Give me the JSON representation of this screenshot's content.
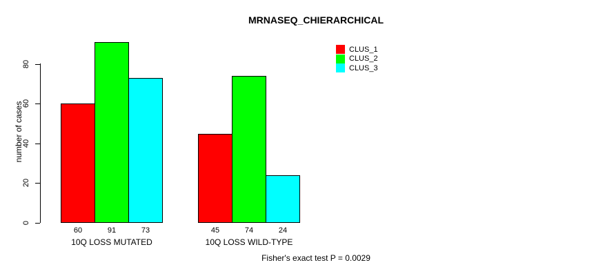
{
  "title": "MRNASEQ_CHIERARCHICAL",
  "footnote": "Fisher's exact test P = 0.0029",
  "chart_data": {
    "type": "bar",
    "title": "MRNASEQ_CHIERARCHICAL",
    "categories": [
      "10Q LOSS MUTATED",
      "10Q LOSS WILD-TYPE"
    ],
    "series": [
      {
        "name": "CLUS_1",
        "color": "#ff0000",
        "values": [
          60,
          45
        ]
      },
      {
        "name": "CLUS_2",
        "color": "#00ff00",
        "values": [
          91,
          74
        ]
      },
      {
        "name": "CLUS_3",
        "color": "#00ffff",
        "values": [
          73,
          24
        ]
      }
    ],
    "bar_value_labels": [
      [
        60,
        91,
        73
      ],
      [
        45,
        74,
        24
      ]
    ],
    "xlabel": "",
    "ylabel": "number of cases",
    "yticks": [
      0,
      20,
      40,
      60,
      80
    ],
    "ylim": [
      0,
      91
    ],
    "grid": false,
    "legend_position": "top-right",
    "annotation": "Fisher's exact test P = 0.0029",
    "bar_border_color": "#000000",
    "background_color": "#ffffff"
  }
}
